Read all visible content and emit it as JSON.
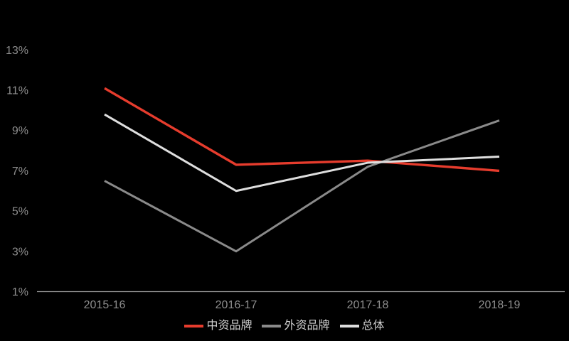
{
  "chart_data": {
    "type": "line",
    "title": "",
    "categories": [
      "2015-16",
      "2016-17",
      "2017-18",
      "2018-19"
    ],
    "series": [
      {
        "name": "中资品牌",
        "color": "#e63c2d",
        "values": [
          11.1,
          7.3,
          7.5,
          7.0
        ]
      },
      {
        "name": "外资品牌",
        "color": "#8a8a8a",
        "values": [
          6.5,
          3.0,
          7.2,
          9.5
        ]
      },
      {
        "name": "总体",
        "color": "#dedede",
        "values": [
          9.8,
          6.0,
          7.4,
          7.7
        ]
      }
    ],
    "y_axis": {
      "unit": "%",
      "min": 1,
      "max": 13,
      "tick_values": [
        13,
        11,
        9,
        7,
        5,
        3,
        1
      ],
      "tick_labels": [
        "13%",
        "11%",
        "9%",
        "7%",
        "5%",
        "3%",
        "1%"
      ]
    },
    "x_axis": {
      "tick_labels": [
        "2015-16",
        "2016-17",
        "2017-18",
        "2018-19"
      ]
    },
    "grid": false,
    "legend_position": "bottom",
    "colors": {
      "background": "#000000",
      "axis_line": "#9c9c9c",
      "tick_label": "#8d8d8d"
    }
  }
}
